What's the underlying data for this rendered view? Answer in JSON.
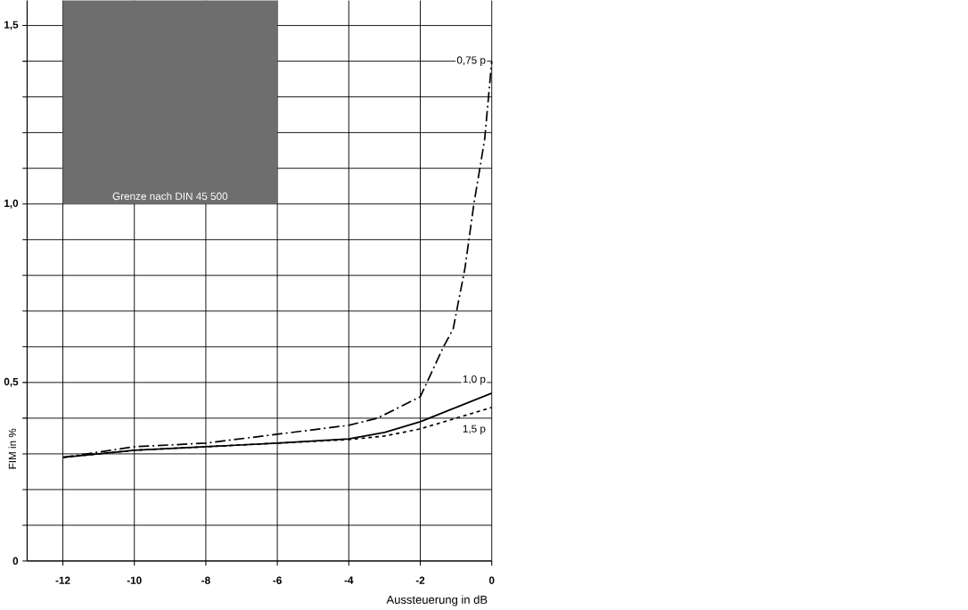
{
  "chart_data": {
    "type": "line",
    "xlabel": "Aussteuerung in dB",
    "ylabel": "FIM in %",
    "xlim": [
      -13,
      0
    ],
    "ylim": [
      0,
      1.57
    ],
    "xticks": [
      -12,
      -10,
      -8,
      -6,
      -4,
      -2,
      0
    ],
    "yticks": [
      {
        "value": 0,
        "label": "0"
      },
      {
        "value": 0.1,
        "label": null
      },
      {
        "value": 0.2,
        "label": null
      },
      {
        "value": 0.3,
        "label": null
      },
      {
        "value": 0.4,
        "label": null
      },
      {
        "value": 0.5,
        "label": "0,5"
      },
      {
        "value": 0.6,
        "label": null
      },
      {
        "value": 0.7,
        "label": null
      },
      {
        "value": 0.8,
        "label": null
      },
      {
        "value": 0.9,
        "label": null
      },
      {
        "value": 1.0,
        "label": "1,0"
      },
      {
        "value": 1.1,
        "label": null
      },
      {
        "value": 1.2,
        "label": null
      },
      {
        "value": 1.3,
        "label": null
      },
      {
        "value": 1.4,
        "label": null
      },
      {
        "value": 1.5,
        "label": "1,5"
      }
    ],
    "grid": true,
    "bands": [
      {
        "axis": "y",
        "from": 1.0,
        "to": 1.57,
        "label": "Grenze nach DIN 45 500",
        "color": "#6e6e6e"
      }
    ],
    "series": [
      {
        "name": "0,75 p",
        "color": "#000000",
        "line_style": "dashdot",
        "x": [
          -12,
          -10,
          -8,
          -6,
          -4,
          -3.2,
          -2,
          -1.35,
          -1.08,
          -0.75,
          -0.5,
          -0.2,
          0
        ],
        "values": [
          0.29,
          0.32,
          0.33,
          0.355,
          0.38,
          0.4,
          0.46,
          0.6,
          0.65,
          0.82,
          1.0,
          1.18,
          1.4
        ]
      },
      {
        "name": "1,0 p",
        "color": "#000000",
        "line_style": "solid",
        "x": [
          -12,
          -10,
          -8,
          -6,
          -4,
          -3,
          -2,
          -1,
          0
        ],
        "values": [
          0.29,
          0.31,
          0.32,
          0.33,
          0.342,
          0.36,
          0.39,
          0.43,
          0.47
        ]
      },
      {
        "name": "1,5 p",
        "color": "#000000",
        "line_style": "dashed",
        "x": [
          -12,
          -10,
          -8,
          -6,
          -4,
          -3,
          -2,
          -1,
          0
        ],
        "values": [
          0.29,
          0.31,
          0.32,
          0.33,
          0.34,
          0.35,
          0.37,
          0.4,
          0.43
        ]
      }
    ]
  }
}
